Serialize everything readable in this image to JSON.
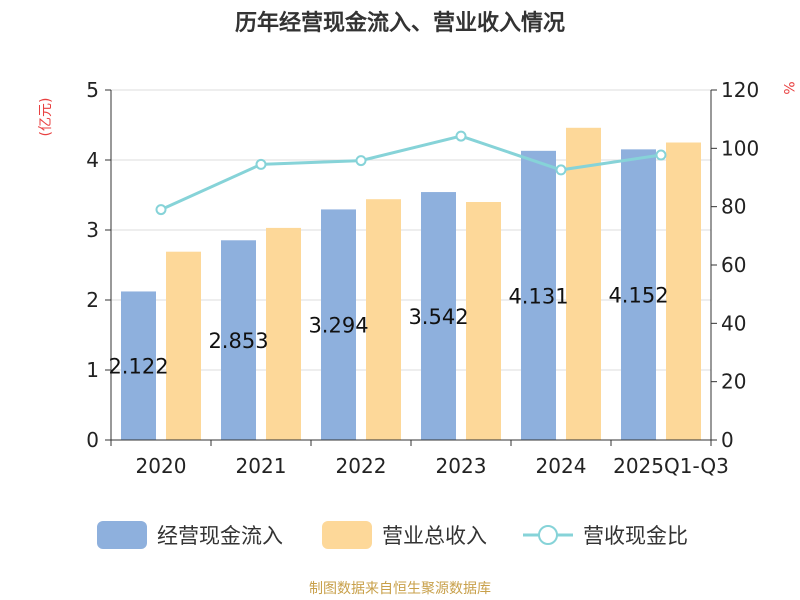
{
  "chart_data": {
    "type": "bar+line",
    "title": "历年经营现金流入、营业收入情况",
    "categories": [
      "2020",
      "2021",
      "2022",
      "2023",
      "2024",
      "2025Q1-Q3"
    ],
    "ylabel_left": "(亿元)",
    "ylabel_right": "%",
    "ylim_left": [
      0,
      5
    ],
    "ylim_right": [
      0,
      120
    ],
    "left_ticks": [
      "0",
      "1",
      "2",
      "3",
      "4",
      "5"
    ],
    "right_ticks": [
      "0",
      "20",
      "40",
      "60",
      "80",
      "100",
      "120"
    ],
    "series": [
      {
        "name": "经营现金流入",
        "axis": "left",
        "kind": "bar",
        "color": "#8eb0dd",
        "values": [
          2.122,
          2.853,
          3.294,
          3.542,
          4.131,
          4.152
        ],
        "labels": [
          "2.122",
          "2.853",
          "3.294",
          "3.542",
          "4.131",
          "4.152"
        ]
      },
      {
        "name": "营业总收入",
        "axis": "left",
        "kind": "bar",
        "color": "#fdd899",
        "values": [
          2.69,
          3.03,
          3.44,
          3.4,
          4.46,
          4.25
        ]
      },
      {
        "name": "营收现金比",
        "axis": "right",
        "kind": "line",
        "color": "#86d3d8",
        "values": [
          79,
          94.5,
          95.8,
          104.2,
          92.6,
          97.7
        ]
      }
    ],
    "legend": {
      "position": "bottom"
    },
    "source": "制图数据来自恒生聚源数据库"
  }
}
